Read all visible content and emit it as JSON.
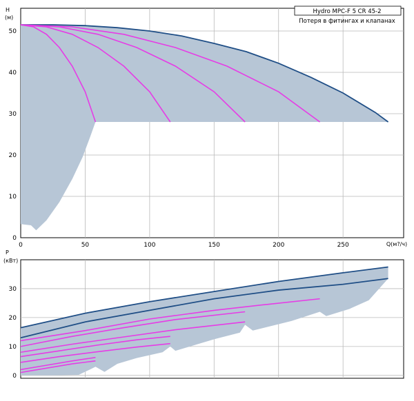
{
  "chart_data": [
    {
      "type": "line",
      "panel": "head",
      "title_lines": [
        "Hydro MPC-F 5 CR 45-2",
        "Потеря в фитингах и клапанах"
      ],
      "xlabel": "Q(м?/ч)",
      "ylabel_lines": [
        "H",
        "(м)"
      ],
      "xlim": [
        0,
        297
      ],
      "ylim": [
        0,
        55.5
      ],
      "grid": true,
      "xticks": [
        0,
        50,
        100,
        150,
        200,
        250
      ],
      "yticks": [
        0,
        10,
        20,
        30,
        40,
        50
      ],
      "colors": {
        "max_curve": "#1f4e86",
        "pump_curves": "#e63ce6",
        "area": "#b7c6d6",
        "grid": "#b9b9b9"
      },
      "area": {
        "upper": [
          [
            0,
            51.5
          ],
          [
            25,
            51.5
          ],
          [
            50,
            51.3
          ],
          [
            75,
            50.8
          ],
          [
            100,
            50.0
          ],
          [
            125,
            48.8
          ],
          [
            150,
            47.0
          ],
          [
            175,
            45.0
          ],
          [
            200,
            42.2
          ],
          [
            225,
            38.8
          ],
          [
            250,
            35.0
          ],
          [
            275,
            30.3
          ],
          [
            285,
            28.0
          ]
        ],
        "lower": [
          [
            0,
            3.3
          ],
          [
            8,
            3.0
          ],
          [
            12,
            1.8
          ],
          [
            20,
            4.2
          ],
          [
            30,
            8.6
          ],
          [
            40,
            14.2
          ],
          [
            48,
            19.5
          ],
          [
            54,
            24.5
          ],
          [
            58,
            28.0
          ],
          [
            285,
            28.0
          ]
        ]
      },
      "series": [
        {
          "role": "max",
          "points": [
            [
              0,
              51.5
            ],
            [
              25,
              51.5
            ],
            [
              50,
              51.3
            ],
            [
              75,
              50.8
            ],
            [
              100,
              50.0
            ],
            [
              125,
              48.8
            ],
            [
              150,
              47.0
            ],
            [
              175,
              45.0
            ],
            [
              200,
              42.2
            ],
            [
              225,
              38.8
            ],
            [
              250,
              35.0
            ],
            [
              275,
              30.3
            ],
            [
              285,
              28.0
            ]
          ]
        },
        {
          "role": "pumps-1",
          "points": [
            [
              0,
              51.5
            ],
            [
              10,
              51.0
            ],
            [
              20,
              49.2
            ],
            [
              30,
              46.0
            ],
            [
              40,
              41.5
            ],
            [
              50,
              35.3
            ],
            [
              58,
              28.0
            ]
          ]
        },
        {
          "role": "pumps-2",
          "points": [
            [
              0,
              51.5
            ],
            [
              20,
              51.0
            ],
            [
              40,
              49.2
            ],
            [
              60,
              46.0
            ],
            [
              80,
              41.5
            ],
            [
              100,
              35.3
            ],
            [
              116,
              28.0
            ]
          ]
        },
        {
          "role": "pumps-3",
          "points": [
            [
              0,
              51.5
            ],
            [
              30,
              51.0
            ],
            [
              60,
              49.2
            ],
            [
              90,
              46.0
            ],
            [
              120,
              41.5
            ],
            [
              150,
              35.3
            ],
            [
              174,
              28.0
            ]
          ]
        },
        {
          "role": "pumps-4",
          "points": [
            [
              0,
              51.5
            ],
            [
              40,
              51.0
            ],
            [
              80,
              49.2
            ],
            [
              120,
              46.0
            ],
            [
              160,
              41.5
            ],
            [
              200,
              35.3
            ],
            [
              232,
              28.0
            ]
          ]
        }
      ]
    },
    {
      "type": "line",
      "panel": "power",
      "ylabel_lines": [
        "P",
        "(кВт)"
      ],
      "xlim": [
        0,
        297
      ],
      "ylim": [
        -1,
        40
      ],
      "grid": true,
      "yticks": [
        0,
        10,
        20,
        30
      ],
      "colors": {
        "max_curve": "#1f4e86",
        "pump_curves": "#e63ce6",
        "area": "#b7c6d6",
        "grid": "#b9b9b9"
      },
      "area": {
        "upper": [
          [
            0,
            16.5
          ],
          [
            50,
            21.5
          ],
          [
            100,
            25.5
          ],
          [
            150,
            29.0
          ],
          [
            200,
            32.5
          ],
          [
            250,
            35.5
          ],
          [
            285,
            37.5
          ]
        ],
        "lower": [
          [
            0,
            0
          ],
          [
            25,
            0
          ],
          [
            45,
            0.2
          ],
          [
            55,
            2.3
          ],
          [
            58,
            3.0
          ],
          [
            65,
            1.2
          ],
          [
            75,
            4.0
          ],
          [
            90,
            6.0
          ],
          [
            110,
            8.0
          ],
          [
            116,
            10.0
          ],
          [
            120,
            8.5
          ],
          [
            150,
            12.5
          ],
          [
            170,
            14.8
          ],
          [
            174,
            17.5
          ],
          [
            180,
            15.5
          ],
          [
            210,
            18.8
          ],
          [
            232,
            22.0
          ],
          [
            237,
            20.5
          ],
          [
            255,
            23.0
          ],
          [
            270,
            26.0
          ],
          [
            285,
            33.5
          ],
          [
            285,
            37.5
          ]
        ]
      },
      "series": [
        {
          "role": "max",
          "points": [
            [
              0,
              16.5
            ],
            [
              50,
              21.5
            ],
            [
              100,
              25.5
            ],
            [
              150,
              29.0
            ],
            [
              200,
              32.5
            ],
            [
              250,
              35.5
            ],
            [
              285,
              37.5
            ]
          ]
        },
        {
          "role": "max-secondary",
          "points": [
            [
              0,
              13.0
            ],
            [
              50,
              18.5
            ],
            [
              100,
              22.5
            ],
            [
              150,
              26.5
            ],
            [
              200,
              29.5
            ],
            [
              250,
              31.5
            ],
            [
              285,
              33.5
            ]
          ]
        },
        {
          "role": "pumps-4",
          "points": [
            [
              0,
              12.0
            ],
            [
              50,
              15.5
            ],
            [
              100,
              19.5
            ],
            [
              150,
              22.5
            ],
            [
              190,
              24.5
            ],
            [
              232,
              26.5
            ]
          ]
        },
        {
          "role": "pumps-3",
          "points": [
            [
              0,
              10.0
            ],
            [
              40,
              13.5
            ],
            [
              80,
              16.5
            ],
            [
              120,
              19.3
            ],
            [
              174,
              22.0
            ]
          ]
        },
        {
          "role": "pumps-3b",
          "points": [
            [
              0,
              8.0
            ],
            [
              40,
              10.8
            ],
            [
              80,
              13.3
            ],
            [
              120,
              15.8
            ],
            [
              174,
              18.5
            ]
          ]
        },
        {
          "role": "pumps-2",
          "points": [
            [
              0,
              6.5
            ],
            [
              30,
              8.5
            ],
            [
              60,
              10.5
            ],
            [
              90,
              12.3
            ],
            [
              116,
              13.5
            ]
          ]
        },
        {
          "role": "pumps-2b",
          "points": [
            [
              0,
              4.5
            ],
            [
              30,
              6.5
            ],
            [
              60,
              8.2
            ],
            [
              90,
              9.8
            ],
            [
              116,
              11.0
            ]
          ]
        },
        {
          "role": "pumps-1",
          "points": [
            [
              0,
              2.0
            ],
            [
              20,
              3.5
            ],
            [
              40,
              5.0
            ],
            [
              58,
              6.2
            ]
          ]
        },
        {
          "role": "pumps-1b",
          "points": [
            [
              0,
              1.0
            ],
            [
              20,
              2.5
            ],
            [
              40,
              4.0
            ],
            [
              58,
              5.0
            ]
          ]
        }
      ]
    }
  ]
}
